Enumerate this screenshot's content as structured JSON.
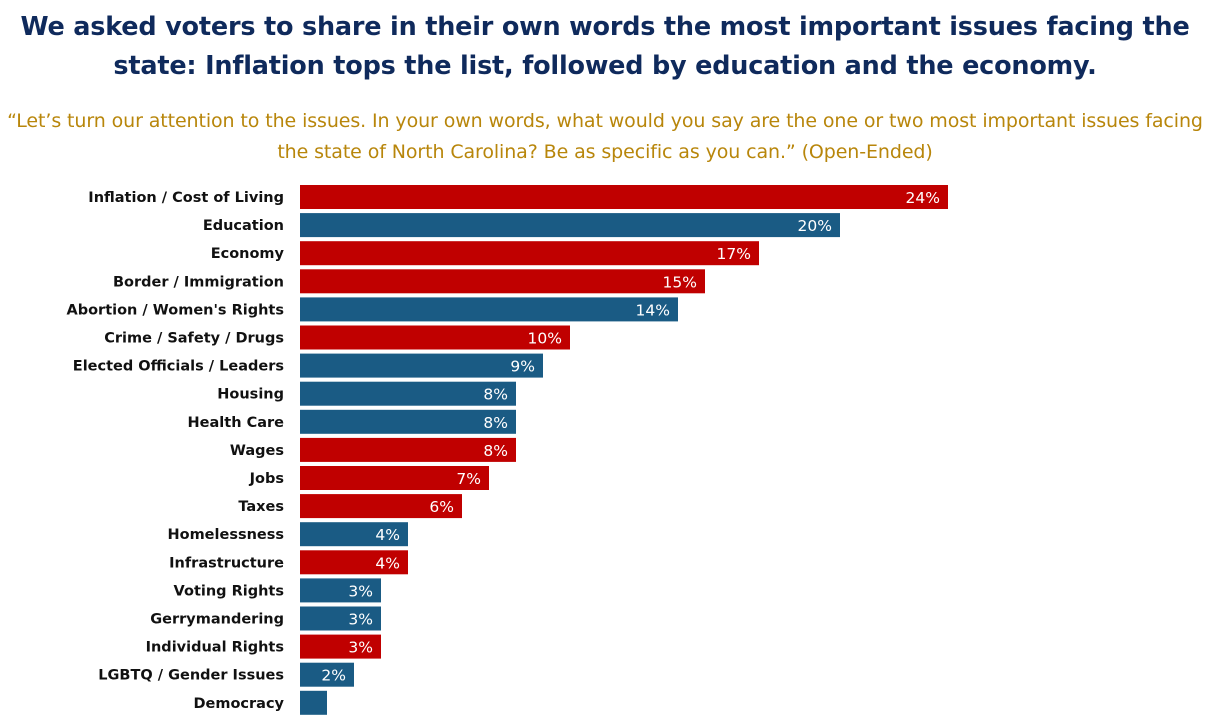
{
  "title": "We asked voters to share in their own words the most important issues facing the state: Inflation tops the list, followed by education and the economy.",
  "subtitle": "“Let’s turn our attention to the issues. In your own words, what would you say are the one or two most important issues facing the state of North Carolina? Be as specific as you can.” (Open-Ended)",
  "colors": {
    "red": "#c00000",
    "blue": "#1a5b84"
  },
  "chart_data": {
    "type": "bar",
    "orientation": "horizontal",
    "title": "",
    "xlabel": "",
    "ylabel": "",
    "categories": [
      "Inflation / Cost of Living",
      "Education",
      "Economy",
      "Border / Immigration",
      "Abortion / Women's Rights",
      "Crime / Safety / Drugs",
      "Elected Officials / Leaders",
      "Housing",
      "Health Care",
      "Wages",
      "Jobs",
      "Taxes",
      "Homelessness",
      "Infrastructure",
      "Voting Rights",
      "Gerrymandering",
      "Individual Rights",
      "LGBTQ / Gender Issues",
      "Democracy"
    ],
    "values": [
      24,
      20,
      17,
      15,
      14,
      10,
      9,
      8,
      8,
      8,
      7,
      6,
      4,
      4,
      3,
      3,
      3,
      2,
      1
    ],
    "data_labels": [
      "24%",
      "20%",
      "17%",
      "15%",
      "14%",
      "10%",
      "9%",
      "8%",
      "8%",
      "8%",
      "7%",
      "6%",
      "4%",
      "4%",
      "3%",
      "3%",
      "3%",
      "2%",
      ""
    ],
    "bar_colors": [
      "red",
      "blue",
      "red",
      "red",
      "blue",
      "red",
      "blue",
      "blue",
      "blue",
      "red",
      "red",
      "red",
      "blue",
      "red",
      "blue",
      "blue",
      "red",
      "blue",
      "blue"
    ],
    "grid": false,
    "legend": "none"
  }
}
